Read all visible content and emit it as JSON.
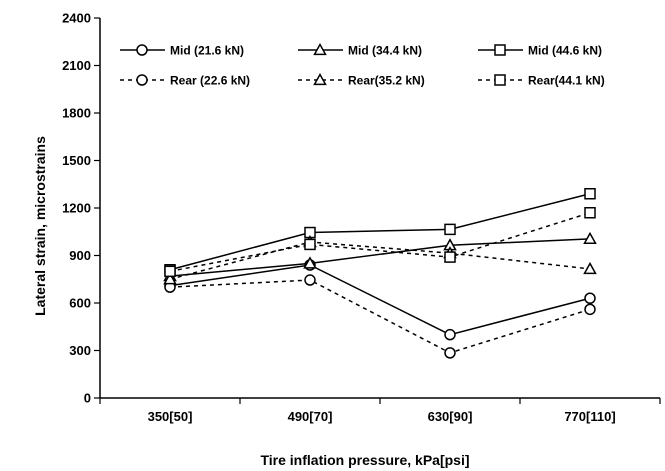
{
  "chart_data": {
    "type": "line",
    "title": "",
    "xlabel": "Tire inflation pressure, kPa[psi]",
    "ylabel": "Lateral strain, microstrains",
    "categories": [
      "350[50]",
      "490[70]",
      "630[90]",
      "770[110]"
    ],
    "ylim": [
      0,
      2400
    ],
    "yticks": [
      0,
      300,
      600,
      900,
      1200,
      1500,
      1800,
      2100,
      2400
    ],
    "grid": false,
    "legend": "top",
    "series": [
      {
        "name": "Mid (21.6 kN)",
        "marker": "circle",
        "line": "solid",
        "values": [
          710,
          840,
          400,
          630
        ]
      },
      {
        "name": "Mid (34.4 kN)",
        "marker": "triangle",
        "line": "solid",
        "values": [
          770,
          850,
          965,
          1005
        ]
      },
      {
        "name": "Mid (44.6 kN)",
        "marker": "square",
        "line": "solid",
        "values": [
          810,
          1045,
          1065,
          1290
        ]
      },
      {
        "name": "Rear (22.6 kN)",
        "marker": "circle",
        "line": "dashed",
        "values": [
          700,
          745,
          285,
          560
        ]
      },
      {
        "name": "Rear(35.2 kN)",
        "marker": "triangle",
        "line": "dashed",
        "values": [
          750,
          985,
          915,
          815
        ]
      },
      {
        "name": "Rear(44.1 kN)",
        "marker": "square",
        "line": "dashed",
        "values": [
          800,
          970,
          890,
          1170
        ]
      }
    ]
  }
}
